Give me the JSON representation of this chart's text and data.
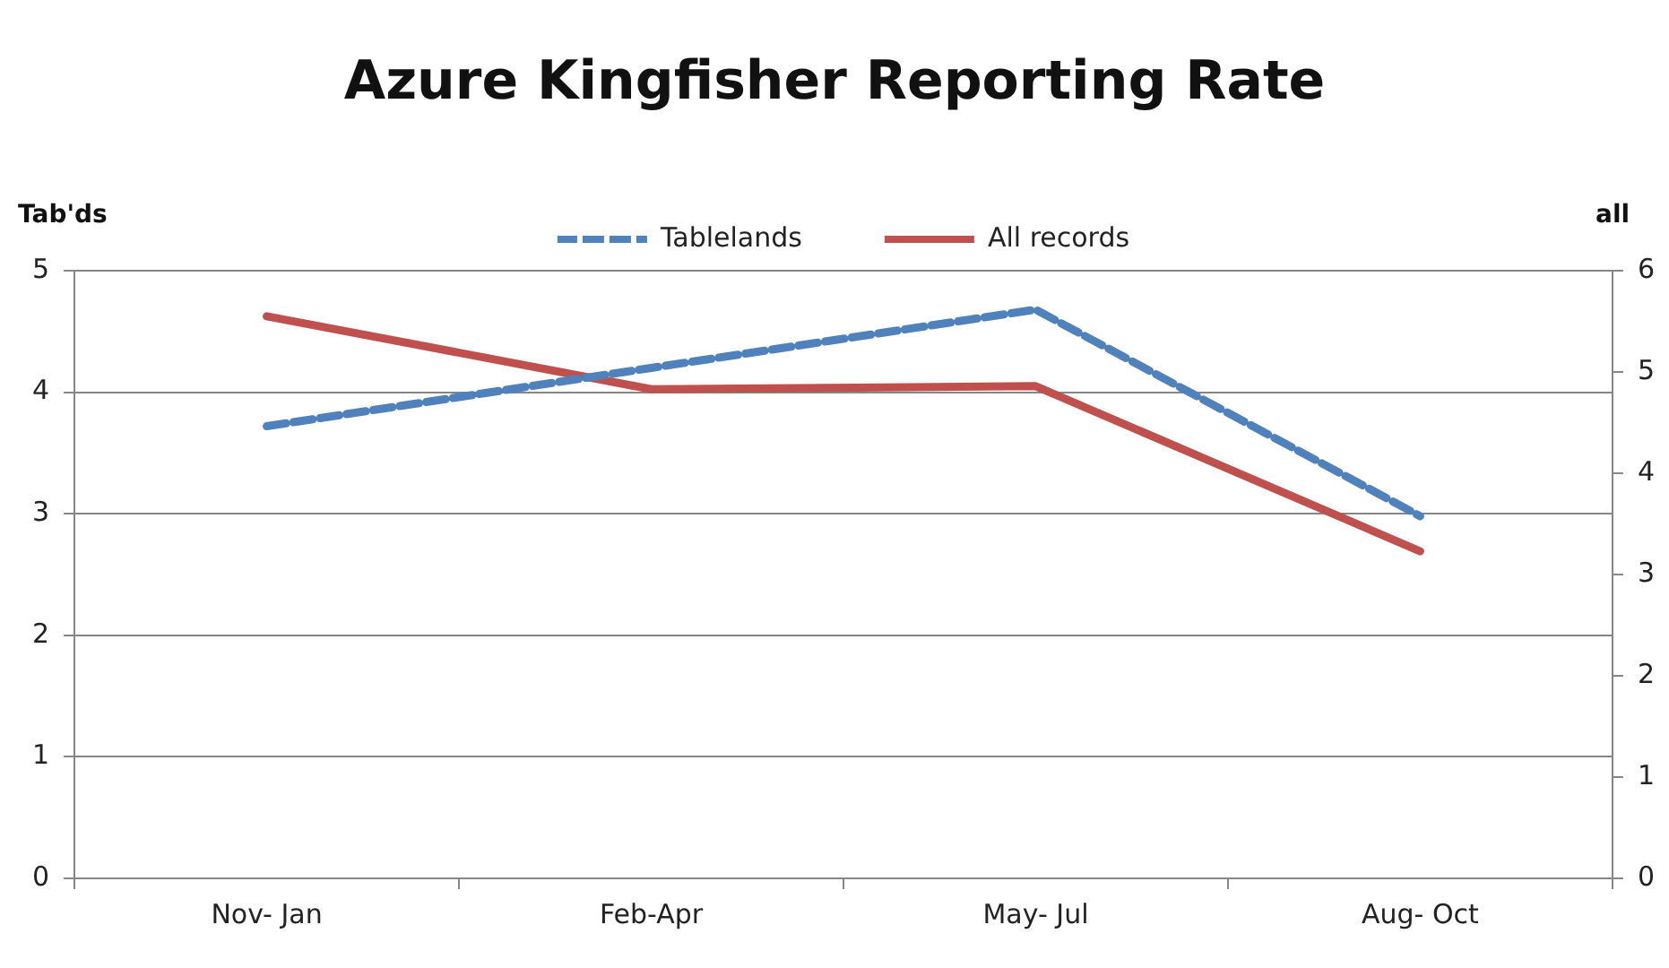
{
  "chart_data": {
    "type": "line",
    "title": "Azure Kingfisher Reporting Rate",
    "ylabel": "Tab'ds",
    "y2label": "all",
    "categories": [
      "Nov- Jan",
      "Feb-Apr",
      "May- Jul",
      "Aug- Oct"
    ],
    "series": [
      {
        "name": "Tablelands",
        "color": "#4f81bd",
        "line_style": "dashed",
        "values": [
          3.72,
          4.2,
          4.68,
          2.98
        ]
      },
      {
        "name": "All records",
        "color": "#c0504d",
        "line_style": "solid",
        "axis": "y2",
        "values": [
          5.55,
          4.83,
          4.86,
          3.23
        ]
      }
    ],
    "ylim": [
      0,
      5
    ],
    "yticks": [
      0,
      1,
      2,
      3,
      4,
      5
    ],
    "y2lim": [
      0,
      6
    ],
    "y2ticks": [
      0,
      1,
      2,
      3,
      4,
      5,
      6
    ],
    "grid": "y",
    "legend": "top",
    "marker": "none"
  }
}
